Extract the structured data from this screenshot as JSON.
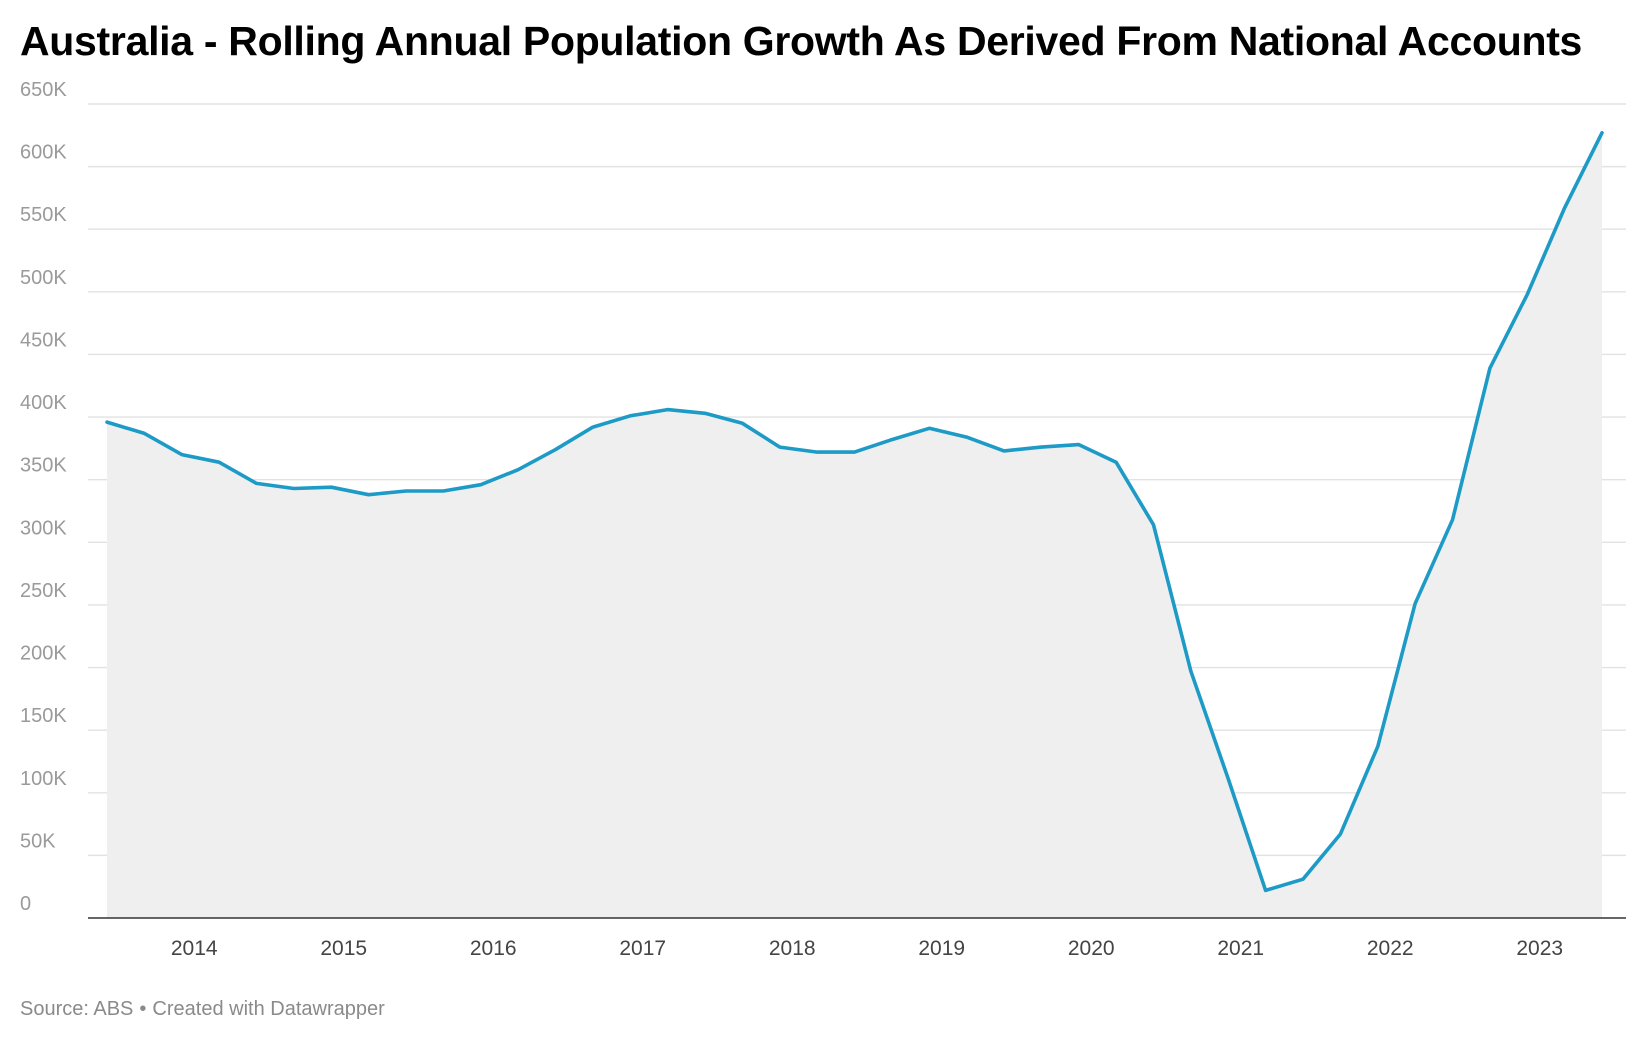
{
  "chart_data": {
    "type": "area",
    "title": "Australia - Rolling Annual Population Growth As Derived From National Accounts",
    "xlabel": "",
    "ylabel": "",
    "ylim": [
      0,
      650000
    ],
    "y_ticks": [
      0,
      50000,
      100000,
      150000,
      200000,
      250000,
      300000,
      350000,
      400000,
      450000,
      500000,
      550000,
      600000,
      650000
    ],
    "y_tick_labels": [
      "0",
      "50K",
      "100K",
      "150K",
      "200K",
      "250K",
      "300K",
      "350K",
      "400K",
      "450K",
      "500K",
      "550K",
      "600K",
      "650K"
    ],
    "x_tick_labels": [
      "2014",
      "2015",
      "2016",
      "2017",
      "2018",
      "2019",
      "2020",
      "2021",
      "2022",
      "2023"
    ],
    "x_range": [
      "2013-06",
      "2023-06"
    ],
    "grid": true,
    "line_color": "#1d9bc6",
    "fill_color": "#efefef",
    "series": [
      {
        "x": [
          "2013-06",
          "2013-09",
          "2013-12",
          "2014-03",
          "2014-06",
          "2014-09",
          "2014-12",
          "2015-03",
          "2015-06",
          "2015-09",
          "2015-12",
          "2016-03",
          "2016-06",
          "2016-09",
          "2016-12",
          "2017-03",
          "2017-06",
          "2017-09",
          "2017-12",
          "2018-03",
          "2018-06",
          "2018-09",
          "2018-12",
          "2019-03",
          "2019-06",
          "2019-09",
          "2019-12",
          "2020-03",
          "2020-06",
          "2020-09",
          "2020-12",
          "2021-03",
          "2021-06",
          "2021-09",
          "2021-12",
          "2022-03",
          "2022-06",
          "2022-09",
          "2022-12",
          "2023-03",
          "2023-06"
        ],
        "values": [
          396000,
          387000,
          370000,
          364000,
          347000,
          343000,
          344000,
          338000,
          341000,
          341000,
          346000,
          358000,
          374000,
          392000,
          401000,
          406000,
          403000,
          395000,
          376000,
          372000,
          372000,
          382000,
          391000,
          384000,
          373000,
          376000,
          378000,
          364000,
          314000,
          197000,
          111000,
          22000,
          31000,
          67000,
          137000,
          251000,
          318000,
          439000,
          498000,
          567000,
          627000
        ]
      }
    ]
  },
  "footer": {
    "source_label": "Source: ABS",
    "separator": "•",
    "credit": "Created with Datawrapper"
  }
}
